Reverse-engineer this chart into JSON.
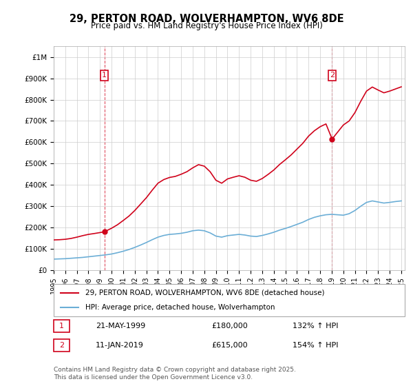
{
  "title": "29, PERTON ROAD, WOLVERHAMPTON, WV6 8DE",
  "subtitle": "Price paid vs. HM Land Registry's House Price Index (HPI)",
  "legend_line1": "29, PERTON ROAD, WOLVERHAMPTON, WV6 8DE (detached house)",
  "legend_line2": "HPI: Average price, detached house, Wolverhampton",
  "footnote": "Contains HM Land Registry data © Crown copyright and database right 2025.\nThis data is licensed under the Open Government Licence v3.0.",
  "sale1_label": "1",
  "sale1_date": "21-MAY-1999",
  "sale1_price": "£180,000",
  "sale1_hpi": "132% ↑ HPI",
  "sale2_label": "2",
  "sale2_date": "11-JAN-2019",
  "sale2_price": "£615,000",
  "sale2_hpi": "154% ↑ HPI",
  "red_color": "#d0021b",
  "blue_color": "#6baed6",
  "dashed_red": "#d0021b",
  "background": "#ffffff",
  "grid_color": "#cccccc",
  "ylim_max": 1050000,
  "ylim_min": 0,
  "sale1_year": 1999.38,
  "sale1_price_val": 180000,
  "sale2_year": 2019.03,
  "sale2_price_val": 615000,
  "hpi_years": [
    1995,
    1995.5,
    1996,
    1996.5,
    1997,
    1997.5,
    1998,
    1998.5,
    1999,
    1999.5,
    2000,
    2000.5,
    2001,
    2001.5,
    2002,
    2002.5,
    2003,
    2003.5,
    2004,
    2004.5,
    2005,
    2005.5,
    2006,
    2006.5,
    2007,
    2007.5,
    2008,
    2008.5,
    2009,
    2009.5,
    2010,
    2010.5,
    2011,
    2011.5,
    2012,
    2012.5,
    2013,
    2013.5,
    2014,
    2014.5,
    2015,
    2015.5,
    2016,
    2016.5,
    2017,
    2017.5,
    2018,
    2018.5,
    2019,
    2019.5,
    2020,
    2020.5,
    2021,
    2021.5,
    2022,
    2022.5,
    2023,
    2023.5,
    2024,
    2024.5,
    2025
  ],
  "hpi_values": [
    52000,
    53000,
    54000,
    56000,
    58000,
    60000,
    63000,
    66000,
    69000,
    72000,
    76000,
    82000,
    89000,
    97000,
    107000,
    118000,
    130000,
    143000,
    155000,
    163000,
    168000,
    170000,
    173000,
    178000,
    185000,
    188000,
    185000,
    175000,
    160000,
    155000,
    162000,
    165000,
    168000,
    165000,
    160000,
    158000,
    163000,
    170000,
    178000,
    188000,
    196000,
    205000,
    215000,
    225000,
    238000,
    248000,
    255000,
    260000,
    262000,
    260000,
    258000,
    265000,
    280000,
    300000,
    318000,
    325000,
    320000,
    315000,
    318000,
    322000,
    325000
  ],
  "red_years": [
    1995,
    1995.5,
    1996,
    1996.5,
    1997,
    1997.5,
    1998,
    1998.5,
    1999.38,
    2000,
    2000.5,
    2001,
    2001.5,
    2002,
    2002.5,
    2003,
    2003.5,
    2004,
    2004.5,
    2005,
    2005.5,
    2006,
    2006.5,
    2007,
    2007.5,
    2008,
    2008.5,
    2009,
    2009.5,
    2010,
    2010.5,
    2011,
    2011.5,
    2012,
    2012.5,
    2013,
    2013.5,
    2014,
    2014.5,
    2015,
    2015.5,
    2016,
    2016.5,
    2017,
    2017.5,
    2018,
    2018.5,
    2019.03,
    2019.5,
    2020,
    2020.5,
    2021,
    2021.5,
    2022,
    2022.5,
    2023,
    2023.5,
    2024,
    2024.5,
    2025
  ],
  "red_values": [
    142000,
    143000,
    145000,
    149000,
    155000,
    162000,
    168000,
    172000,
    180000,
    197000,
    213000,
    233000,
    254000,
    280000,
    310000,
    340000,
    375000,
    408000,
    425000,
    435000,
    440000,
    450000,
    462000,
    480000,
    495000,
    488000,
    462000,
    422000,
    408000,
    428000,
    436000,
    443000,
    436000,
    422000,
    417000,
    430000,
    449000,
    470000,
    496000,
    518000,
    541000,
    568000,
    595000,
    629000,
    654000,
    673000,
    686000,
    615000,
    647000,
    681000,
    700000,
    739000,
    792000,
    840000,
    859000,
    845000,
    832000,
    840000,
    850000,
    860000
  ]
}
